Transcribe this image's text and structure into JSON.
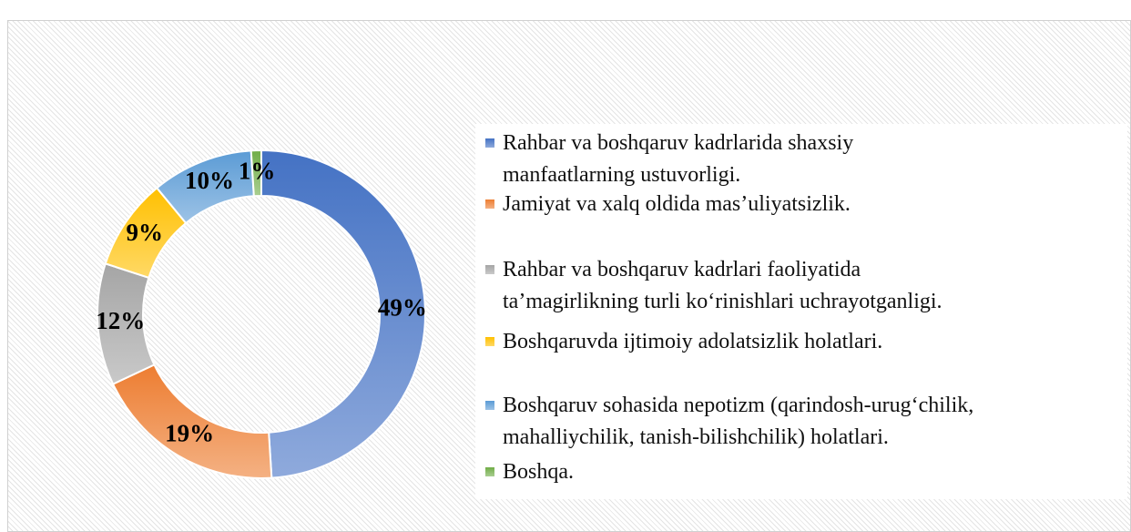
{
  "chart_data": {
    "type": "doughnut",
    "categories": [
      "Rahbar va boshqaruv kadrlarida shaxsiy\nmanfaatlarning ustuvorligi.",
      "Jamiyat va xalq oldida mas’uliyatsizlik.",
      "Rahbar va boshqaruv kadrlari faoliyatida\nta’magirlikning turli ko‘rinishlari uchrayotganligi.",
      "Boshqaruvda ijtimoiy adolatsizlik holatlari.",
      "Boshqaruv sohasida nepotizm (qarindosh-urug‘chilik,\nmahalliychilik, tanish-bilishchilik) holatlari.",
      "Boshqa."
    ],
    "values": [
      49,
      19,
      12,
      9,
      10,
      1
    ],
    "value_labels": [
      "49%",
      "19%",
      "12%",
      "9%",
      "10%",
      "1%"
    ],
    "colors": [
      "#4472c4",
      "#ed7d31",
      "#a5a5a5",
      "#ffc000",
      "#5b9bd5",
      "#70ad47"
    ],
    "legend": "right"
  }
}
